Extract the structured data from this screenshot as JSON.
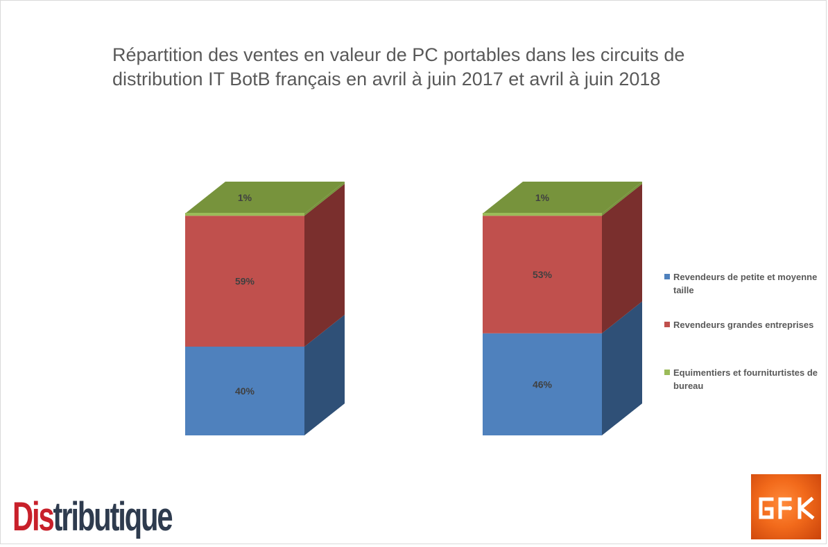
{
  "title_lines": [
    "Répartition des ventes en valeur de PC portables dans les circuits de",
    "distribution IT BotB français en avril à juin 2017 et avril à juin 2018"
  ],
  "chart_data": {
    "type": "bar",
    "stacked": true,
    "percent_stacked": true,
    "three_d": true,
    "categories": [
      "",
      ""
    ],
    "series": [
      {
        "name": "Revendeurs de petite et moyenne taille",
        "values": [
          40,
          46
        ],
        "labels": [
          "40%",
          "46%"
        ],
        "color": "#4f81bd",
        "side_color": "#2f5077"
      },
      {
        "name": "Revendeurs grandes entreprises",
        "values": [
          59,
          53
        ],
        "labels": [
          "59%",
          "53%"
        ],
        "color": "#c0504d",
        "side_color": "#7a2f2d"
      },
      {
        "name": "Equimentiers et fourniturtistes de bureau",
        "values": [
          1,
          1
        ],
        "labels": [
          "1%",
          "1%"
        ],
        "color": "#9bbb59",
        "top_color": "#77933c"
      }
    ],
    "legend_position": "right",
    "grid": false,
    "axes_visible": false,
    "title": "Répartition des ventes en valeur de PC portables dans les circuits de distribution IT BotB français en avril à juin 2017 et avril à juin 2018"
  },
  "legend": [
    {
      "label_lines": [
        "Revendeurs de petite et moyenne",
        "taille"
      ],
      "color": "#4f81bd"
    },
    {
      "label_lines": [
        "Revendeurs grandes entreprises"
      ],
      "color": "#c0504d"
    },
    {
      "label_lines": [
        "Equimentiers et fourniturtistes de",
        "bureau"
      ],
      "color": "#9bbb59"
    }
  ],
  "logos": {
    "distributique": {
      "part1": "Dis",
      "part2": "tributique"
    },
    "gfk": "GfK"
  }
}
